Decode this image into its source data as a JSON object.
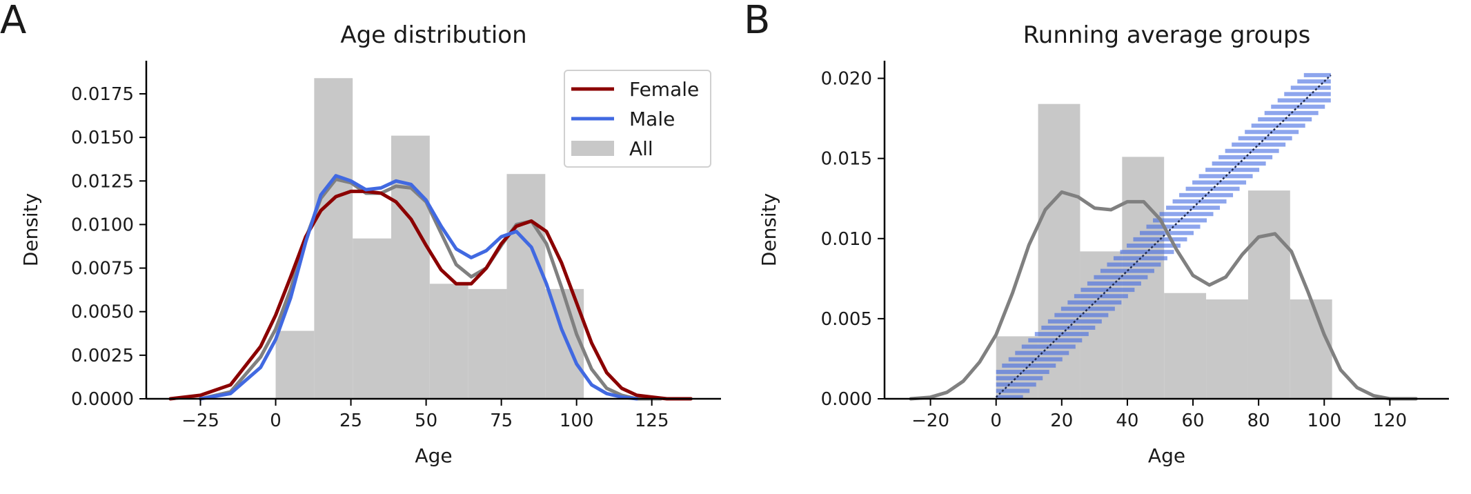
{
  "chart_data": [
    {
      "panel_label": "A",
      "type": "bar",
      "title": "Age distribution",
      "xlabel": "Age",
      "ylabel": "Density",
      "xlim": [
        -43,
        148
      ],
      "ylim": [
        0,
        0.0194
      ],
      "xticks": [
        -25,
        0,
        25,
        50,
        75,
        100,
        125
      ],
      "xtick_labels": [
        "−25",
        "0",
        "25",
        "50",
        "75",
        "100",
        "125"
      ],
      "yticks": [
        0,
        0.0025,
        0.005,
        0.0075,
        0.01,
        0.0125,
        0.015,
        0.0175
      ],
      "ytick_labels": [
        "0.0000",
        "0.0025",
        "0.0050",
        "0.0075",
        "0.0100",
        "0.0125",
        "0.0150",
        "0.0175"
      ],
      "grid": false,
      "legend_position": "top-right",
      "histogram": {
        "name": "All",
        "color": "#c8c8c8",
        "bins": [
          {
            "x0": 0,
            "x1": 12.8,
            "density": 0.0039
          },
          {
            "x0": 12.8,
            "x1": 25.6,
            "density": 0.0184
          },
          {
            "x0": 25.6,
            "x1": 38.4,
            "density": 0.0092
          },
          {
            "x0": 38.4,
            "x1": 51.2,
            "density": 0.0151
          },
          {
            "x0": 51.2,
            "x1": 64.0,
            "density": 0.0066
          },
          {
            "x0": 64.0,
            "x1": 76.8,
            "density": 0.0063
          },
          {
            "x0": 76.8,
            "x1": 89.6,
            "density": 0.0129
          },
          {
            "x0": 89.6,
            "x1": 102.4,
            "density": 0.0063
          }
        ]
      },
      "series": [
        {
          "name": "Female",
          "color": "#8b0000",
          "x": [
            -35,
            -25,
            -15,
            -5,
            0,
            5,
            10,
            15,
            20,
            25,
            30,
            35,
            40,
            45,
            50,
            55,
            60,
            65,
            70,
            75,
            80,
            85,
            90,
            95,
            100,
            105,
            110,
            115,
            120,
            125,
            130,
            138
          ],
          "y": [
            0.0,
            0.0002,
            0.0008,
            0.003,
            0.0048,
            0.007,
            0.0093,
            0.0108,
            0.0116,
            0.0119,
            0.0119,
            0.0118,
            0.0113,
            0.0103,
            0.0088,
            0.0074,
            0.0066,
            0.0066,
            0.0075,
            0.0089,
            0.0099,
            0.0102,
            0.0096,
            0.0078,
            0.0055,
            0.0032,
            0.0015,
            0.0006,
            0.0002,
            0.0001,
            0.0,
            0.0
          ]
        },
        {
          "name": "Male",
          "color": "#4169e1",
          "x": [
            -25,
            -15,
            -5,
            0,
            5,
            10,
            15,
            20,
            25,
            30,
            35,
            40,
            45,
            50,
            55,
            60,
            65,
            70,
            75,
            80,
            85,
            90,
            95,
            100,
            105,
            110,
            115,
            120
          ],
          "y": [
            0.0,
            0.0003,
            0.0018,
            0.0034,
            0.0058,
            0.009,
            0.0117,
            0.0128,
            0.0125,
            0.012,
            0.0121,
            0.0125,
            0.0123,
            0.0114,
            0.0099,
            0.0086,
            0.0081,
            0.0085,
            0.0093,
            0.0096,
            0.0087,
            0.0066,
            0.004,
            0.002,
            0.0008,
            0.0003,
            0.0001,
            0.0
          ]
        },
        {
          "name": "All",
          "color": "#808080",
          "legend": false,
          "x": [
            -25,
            -15,
            -5,
            0,
            5,
            10,
            15,
            20,
            25,
            30,
            35,
            40,
            45,
            50,
            55,
            60,
            65,
            70,
            75,
            80,
            85,
            90,
            95,
            100,
            105,
            110,
            115,
            120,
            128
          ],
          "y": [
            0.0,
            0.0004,
            0.0024,
            0.004,
            0.0063,
            0.0092,
            0.0115,
            0.0126,
            0.0124,
            0.0118,
            0.0118,
            0.0122,
            0.0121,
            0.0113,
            0.0095,
            0.0077,
            0.007,
            0.0075,
            0.0088,
            0.01,
            0.0102,
            0.0089,
            0.0064,
            0.0037,
            0.0017,
            0.0006,
            0.0002,
            0.0,
            0.0
          ]
        }
      ]
    },
    {
      "panel_label": "B",
      "type": "bar",
      "title": "Running average groups",
      "xlabel": "Age",
      "ylabel": "Density",
      "xlim": [
        -34,
        138
      ],
      "ylim": [
        0,
        0.0211
      ],
      "xticks": [
        -20,
        0,
        20,
        40,
        60,
        80,
        100,
        120
      ],
      "xtick_labels": [
        "−20",
        "0",
        "20",
        "40",
        "60",
        "80",
        "100",
        "120"
      ],
      "yticks": [
        0,
        0.005,
        0.01,
        0.015,
        0.02
      ],
      "ytick_labels": [
        "0.000",
        "0.005",
        "0.010",
        "0.015",
        "0.020"
      ],
      "grid": false,
      "histogram": {
        "color": "#c8c8c8",
        "bins": [
          {
            "x0": 0,
            "x1": 12.8,
            "density": 0.0039
          },
          {
            "x0": 12.8,
            "x1": 25.6,
            "density": 0.0184
          },
          {
            "x0": 25.6,
            "x1": 38.4,
            "density": 0.0092
          },
          {
            "x0": 38.4,
            "x1": 51.2,
            "density": 0.0151
          },
          {
            "x0": 51.2,
            "x1": 64.0,
            "density": 0.0066
          },
          {
            "x0": 64.0,
            "x1": 76.8,
            "density": 0.0062
          },
          {
            "x0": 76.8,
            "x1": 89.6,
            "density": 0.013
          },
          {
            "x0": 89.6,
            "x1": 102.4,
            "density": 0.0062
          }
        ]
      },
      "series": [
        {
          "name": "",
          "color": "#808080",
          "x": [
            -26,
            -20,
            -15,
            -10,
            -5,
            0,
            5,
            10,
            15,
            20,
            25,
            30,
            35,
            40,
            45,
            50,
            55,
            60,
            65,
            70,
            75,
            80,
            85,
            90,
            95,
            100,
            105,
            110,
            115,
            120,
            128
          ],
          "y": [
            0.0,
            0.0001,
            0.0004,
            0.0011,
            0.0023,
            0.004,
            0.0066,
            0.0096,
            0.0118,
            0.0129,
            0.0126,
            0.0119,
            0.0118,
            0.0123,
            0.0123,
            0.0112,
            0.0093,
            0.0077,
            0.0071,
            0.0076,
            0.009,
            0.0101,
            0.0103,
            0.0092,
            0.0067,
            0.004,
            0.0018,
            0.0007,
            0.0002,
            0.0,
            0.0
          ]
        }
      ],
      "running_groups": {
        "color": "#4169e1",
        "diagonal_color": "#1f2a4d",
        "diagonal": {
          "x": [
            0,
            102
          ],
          "y": [
            0.0001,
            0.0202
          ]
        },
        "group_half_width": 8.2,
        "count": 52
      }
    }
  ]
}
